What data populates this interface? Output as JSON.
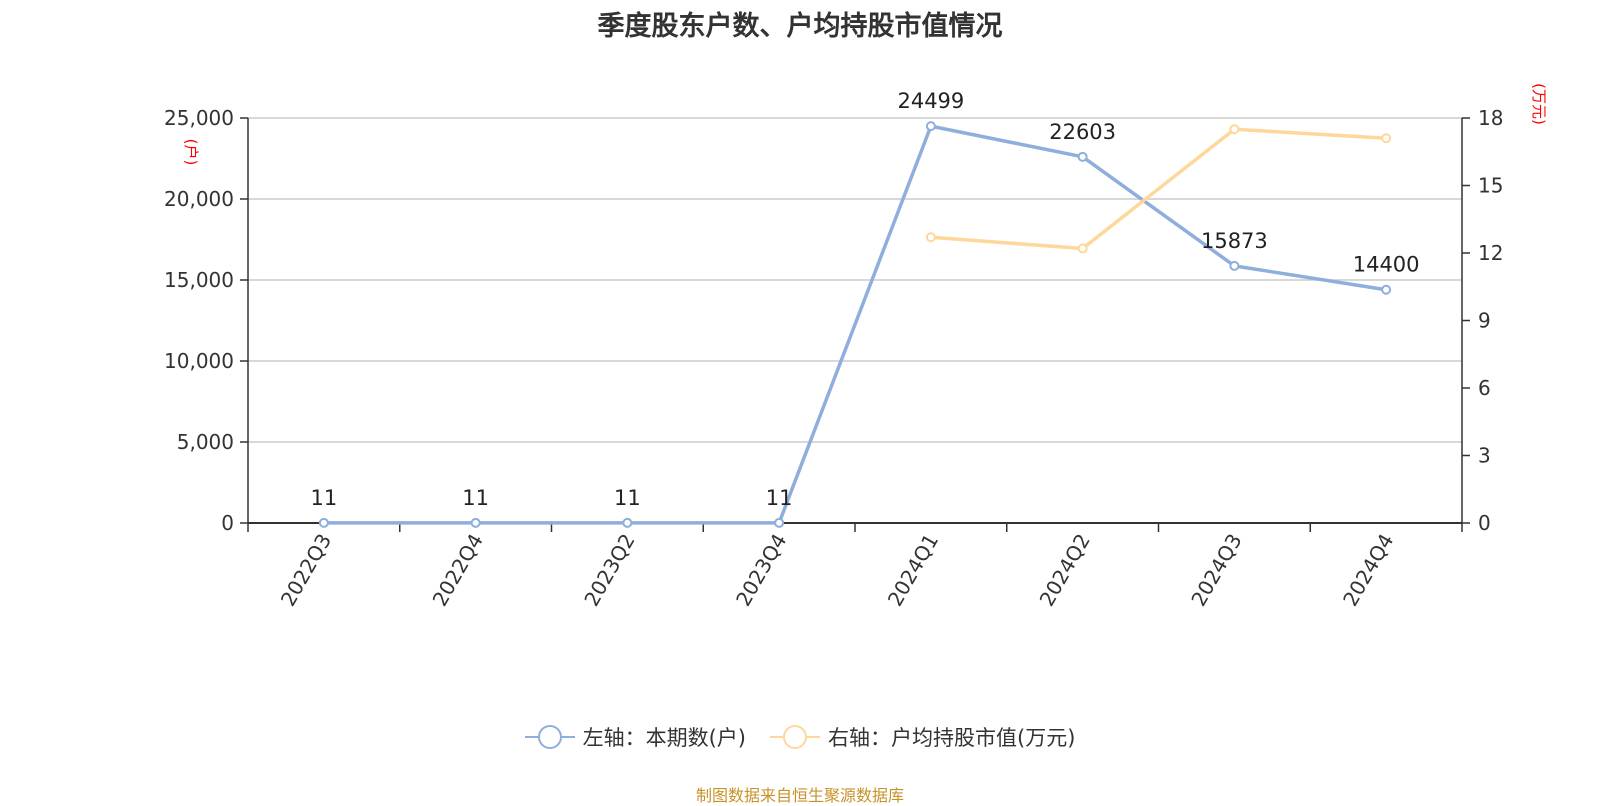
{
  "title": "季度股东户数、户均持股市值情况",
  "source": "制图数据来自恒生聚源数据库",
  "colors": {
    "series_left": "#8eaedb",
    "series_right": "#fdd89a",
    "unit": "#ff0000",
    "grid": "#cccccc",
    "source": "#c8922a"
  },
  "chart_data": {
    "type": "line",
    "title": "季度股东户数、户均持股市值情况",
    "categories": [
      "2022Q3",
      "2022Q4",
      "2023Q2",
      "2023Q4",
      "2024Q1",
      "2024Q2",
      "2024Q3",
      "2024Q4"
    ],
    "left_axis": {
      "unit": "(户)",
      "ylim": [
        0,
        25000
      ],
      "ticks": [
        "0",
        "5,000",
        "10,000",
        "15,000",
        "20,000",
        "25,000"
      ],
      "tick_values": [
        0,
        5000,
        10000,
        15000,
        20000,
        25000
      ]
    },
    "right_axis": {
      "unit": "(万元)",
      "ylim": [
        0,
        18
      ],
      "ticks": [
        "0",
        "3",
        "6",
        "9",
        "12",
        "15",
        "18"
      ],
      "tick_values": [
        0,
        3,
        6,
        9,
        12,
        15,
        18
      ]
    },
    "series": [
      {
        "name": "左轴：本期数(户)",
        "axis": "left",
        "values": [
          11,
          11,
          11,
          11,
          24499,
          22603,
          15873,
          14400
        ],
        "labels": [
          "11",
          "11",
          "11",
          "11",
          "24499",
          "22603",
          "15873",
          "14400"
        ]
      },
      {
        "name": "右轴：户均持股市值(万元)",
        "axis": "right",
        "values": [
          null,
          null,
          null,
          null,
          12.7,
          12.2,
          17.5,
          17.1
        ]
      }
    ],
    "grid": true,
    "legend_position": "bottom-center"
  }
}
